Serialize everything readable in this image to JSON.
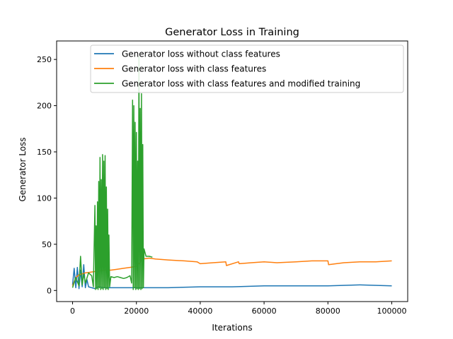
{
  "chart_data": {
    "type": "line",
    "title": "Generator Loss in Training",
    "xlabel": "Iterations",
    "ylabel": "Generator Loss",
    "xlim": [
      -5000,
      105000
    ],
    "ylim": [
      -12,
      270
    ],
    "xticks": [
      0,
      20000,
      40000,
      60000,
      80000,
      100000
    ],
    "xtick_labels": [
      "0",
      "20000",
      "40000",
      "60000",
      "80000",
      "100000"
    ],
    "yticks": [
      0,
      50,
      100,
      150,
      200,
      250
    ],
    "ytick_labels": [
      "0",
      "50",
      "100",
      "150",
      "200",
      "250"
    ],
    "grid": false,
    "legend_position": "top-right",
    "series": [
      {
        "name": "Generator loss without class features",
        "color": "#1f77b4",
        "x": [
          0,
          500,
          1000,
          1500,
          2000,
          2500,
          3000,
          3500,
          4000,
          4500,
          5000,
          6000,
          7000,
          8000,
          10000,
          15000,
          20000,
          25000,
          30000,
          40000,
          50000,
          60000,
          70000,
          80000,
          90000,
          100000
        ],
        "y": [
          6,
          24,
          3,
          25,
          2,
          22,
          4,
          28,
          3,
          12,
          4,
          3,
          2,
          4,
          3,
          3,
          3,
          3,
          3,
          4,
          4,
          5,
          5,
          5,
          6,
          5
        ]
      },
      {
        "name": "Generator loss with class features",
        "color": "#ff7f0e",
        "x": [
          0,
          1000,
          2000,
          4000,
          6000,
          8000,
          10000,
          12000,
          14000,
          16000,
          18000,
          20000,
          22000,
          24000,
          26000,
          30000,
          35000,
          39000,
          40000,
          44000,
          48000,
          48200,
          52000,
          52200,
          56000,
          60000,
          64000,
          70000,
          75000,
          80000,
          80200,
          85000,
          90000,
          95000,
          100000
        ],
        "y": [
          5,
          14,
          17,
          19,
          20,
          21,
          22,
          22,
          23,
          24,
          25,
          26,
          34,
          35,
          34,
          33,
          32,
          31,
          29,
          30,
          31,
          27,
          31,
          29,
          30,
          31,
          30,
          31,
          32,
          32,
          28,
          30,
          31,
          31,
          32
        ]
      },
      {
        "name": "Generator loss with class features and modified training",
        "color": "#2ca02c",
        "x": [
          0,
          1000,
          2000,
          2500,
          3000,
          3500,
          4000,
          5000,
          6000,
          6500,
          7000,
          7200,
          7400,
          7600,
          7800,
          8000,
          8200,
          8400,
          8600,
          8800,
          9000,
          9200,
          9400,
          9600,
          9800,
          10000,
          10200,
          10400,
          10600,
          10800,
          11000,
          11200,
          11400,
          11600,
          12000,
          13000,
          14000,
          15000,
          16000,
          17000,
          18000,
          18500,
          18800,
          19000,
          19200,
          19400,
          19600,
          19800,
          20000,
          20200,
          20400,
          20600,
          20800,
          21000,
          21200,
          21400,
          21600,
          21800,
          22000,
          22200,
          22400,
          23000,
          24000,
          25000
        ],
        "y": [
          3,
          14,
          5,
          37,
          6,
          18,
          8,
          19,
          16,
          4,
          92,
          1,
          70,
          2,
          96,
          1,
          118,
          3,
          144,
          1,
          120,
          2,
          147,
          1,
          140,
          3,
          146,
          1,
          112,
          2,
          88,
          1,
          60,
          4,
          15,
          14,
          15,
          14,
          13,
          14,
          16,
          8,
          206,
          1,
          200,
          3,
          182,
          1,
          171,
          2,
          140,
          1,
          253,
          2,
          197,
          1,
          213,
          2,
          158,
          3,
          45,
          37,
          37,
          36
        ]
      }
    ]
  }
}
